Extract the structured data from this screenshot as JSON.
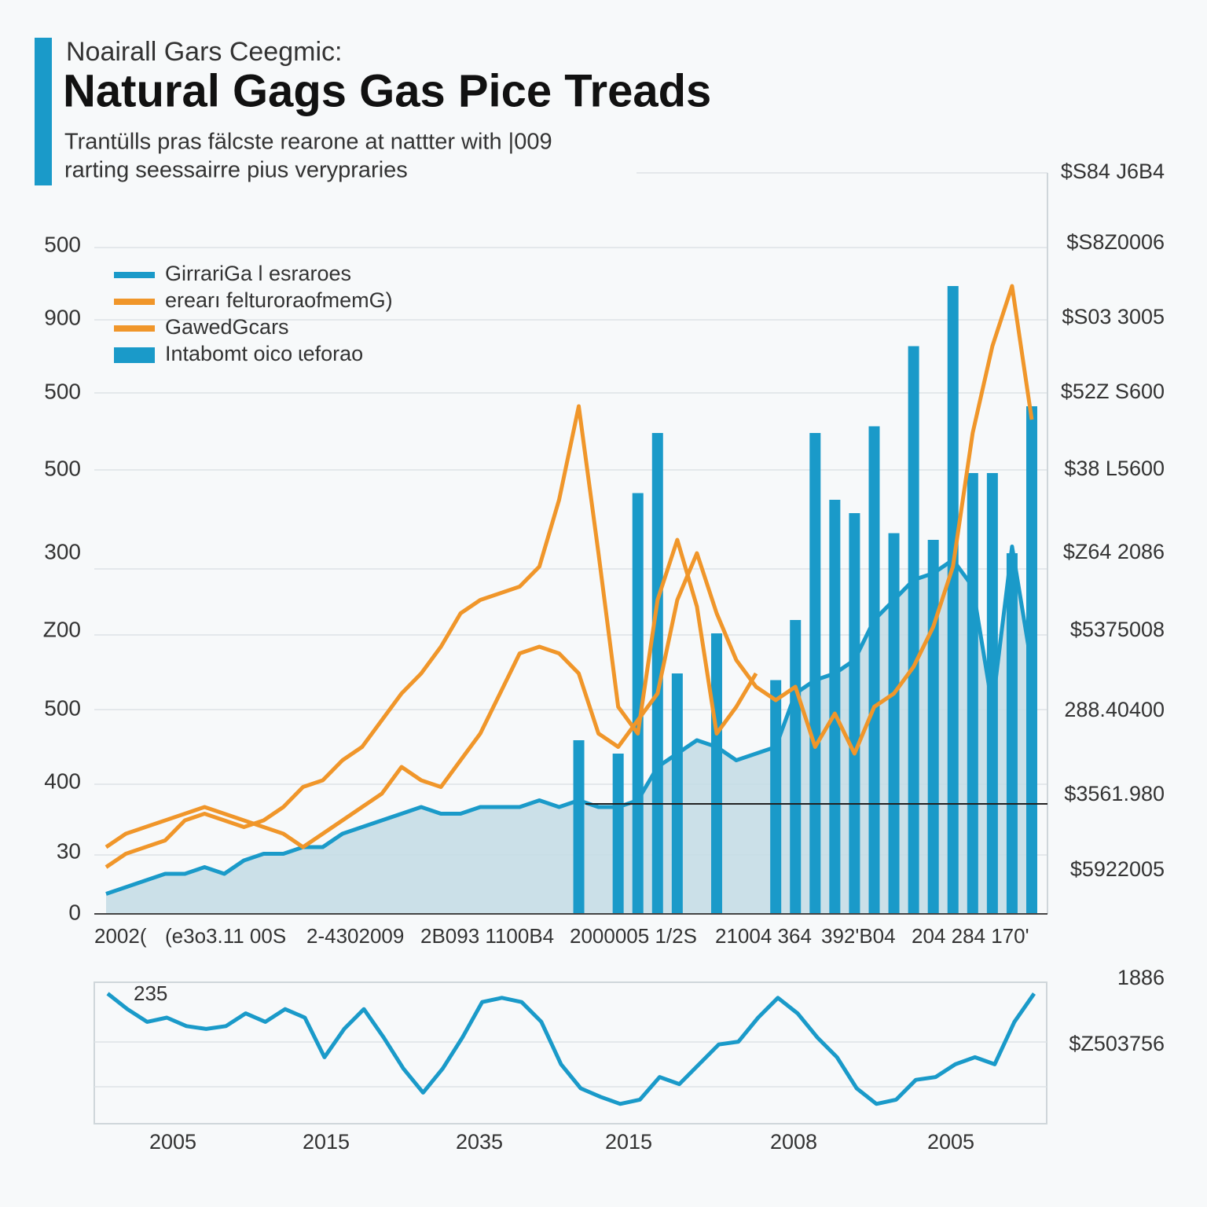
{
  "chart_data": {
    "type": "line",
    "kicker": "Noairall Gars Ceegmic:",
    "title": "Natural Gags Gas  Pice Treads",
    "subtitle_lines": [
      "Trantülls pras fälcste rearone at nattter with |009",
      "rarting seessairre pius verypraries"
    ],
    "y_axis_labels": [
      "500",
      "900",
      "500",
      "500",
      "300",
      "Z00",
      "500",
      "400",
      "30",
      "0"
    ],
    "y2_axis_labels": [
      "$S84 J6B4",
      "$S8Z0006",
      "$S03 3005",
      "$52Z S600",
      "$38 L5600",
      "$Z64 2086",
      "$5375008",
      "288.40400",
      "$3561.980",
      "$5922005"
    ],
    "x_axis_labels": [
      "2002(",
      "(e3o3.11 00S",
      "2-4302009",
      "2B093 1100B4",
      "2000005 1/2S",
      "21004 364",
      "392'B04",
      "204 284 170'"
    ],
    "ylim": [
      0,
      100
    ],
    "series": [
      {
        "name": "GirrariGa l esraroes",
        "color": "#1a9ac9",
        "style": "line",
        "values": [
          3,
          4,
          5,
          6,
          6,
          7,
          6,
          8,
          9,
          9,
          10,
          10,
          12,
          13,
          14,
          15,
          16,
          15,
          15,
          16,
          16,
          16,
          17,
          16,
          17,
          16,
          16,
          17,
          22,
          24,
          26,
          25,
          23,
          24,
          25,
          33,
          35,
          36,
          38,
          44,
          47,
          50,
          51,
          53,
          49,
          31,
          55,
          37
        ]
      },
      {
        "name": "erearı felturoraofmemG)",
        "color": "#f0962a",
        "style": "line",
        "values": [
          7,
          9,
          10,
          11,
          14,
          15,
          14,
          13,
          14,
          16,
          19,
          20,
          23,
          25,
          29,
          33,
          36,
          40,
          45,
          47,
          48,
          49,
          52,
          62,
          76,
          54,
          31,
          27,
          47,
          56,
          46,
          27,
          31,
          36,
          null,
          null,
          null,
          null,
          null,
          null,
          null,
          null,
          null,
          null,
          null,
          null,
          null,
          null
        ]
      },
      {
        "name": "GawedGcars",
        "color": "#f0962a",
        "style": "line",
        "values": [
          10,
          12,
          13,
          14,
          15,
          16,
          15,
          14,
          13,
          12,
          10,
          12,
          14,
          16,
          18,
          22,
          20,
          19,
          23,
          27,
          33,
          39,
          40,
          39,
          36,
          27,
          25,
          29,
          33,
          47,
          54,
          45,
          38,
          34,
          32,
          34,
          25,
          30,
          24,
          31,
          33,
          37,
          43,
          52,
          72,
          85,
          94,
          74
        ]
      },
      {
        "name": "Intabomt oico ɩeforao",
        "color": "#1a9ac9",
        "style": "bar",
        "values": [
          null,
          null,
          null,
          null,
          null,
          null,
          null,
          null,
          null,
          null,
          null,
          null,
          null,
          null,
          null,
          null,
          null,
          null,
          null,
          null,
          null,
          null,
          null,
          null,
          26,
          null,
          24,
          63,
          72,
          36,
          null,
          42,
          null,
          null,
          35,
          44,
          72,
          62,
          60,
          73,
          57,
          85,
          56,
          94,
          66,
          66,
          54,
          76
        ]
      }
    ],
    "inset": {
      "type": "line",
      "label": "235",
      "right_labels": [
        "1886",
        "$Z503756"
      ],
      "color": "#1a9ac9",
      "ylim": [
        0,
        100
      ],
      "values": [
        92,
        81,
        72,
        75,
        69,
        67,
        69,
        78,
        72,
        81,
        75,
        47,
        67,
        81,
        61,
        39,
        22,
        39,
        61,
        86,
        89,
        86,
        72,
        42,
        25,
        19,
        14,
        17,
        33,
        28,
        42,
        56,
        58,
        75,
        89,
        78,
        61,
        47,
        25,
        14,
        17,
        31,
        33,
        42,
        47,
        42,
        72,
        92
      ],
      "x_axis_labels": [
        "2005",
        "2015",
        "2035",
        "2015",
        "2008",
        "2005"
      ]
    }
  }
}
